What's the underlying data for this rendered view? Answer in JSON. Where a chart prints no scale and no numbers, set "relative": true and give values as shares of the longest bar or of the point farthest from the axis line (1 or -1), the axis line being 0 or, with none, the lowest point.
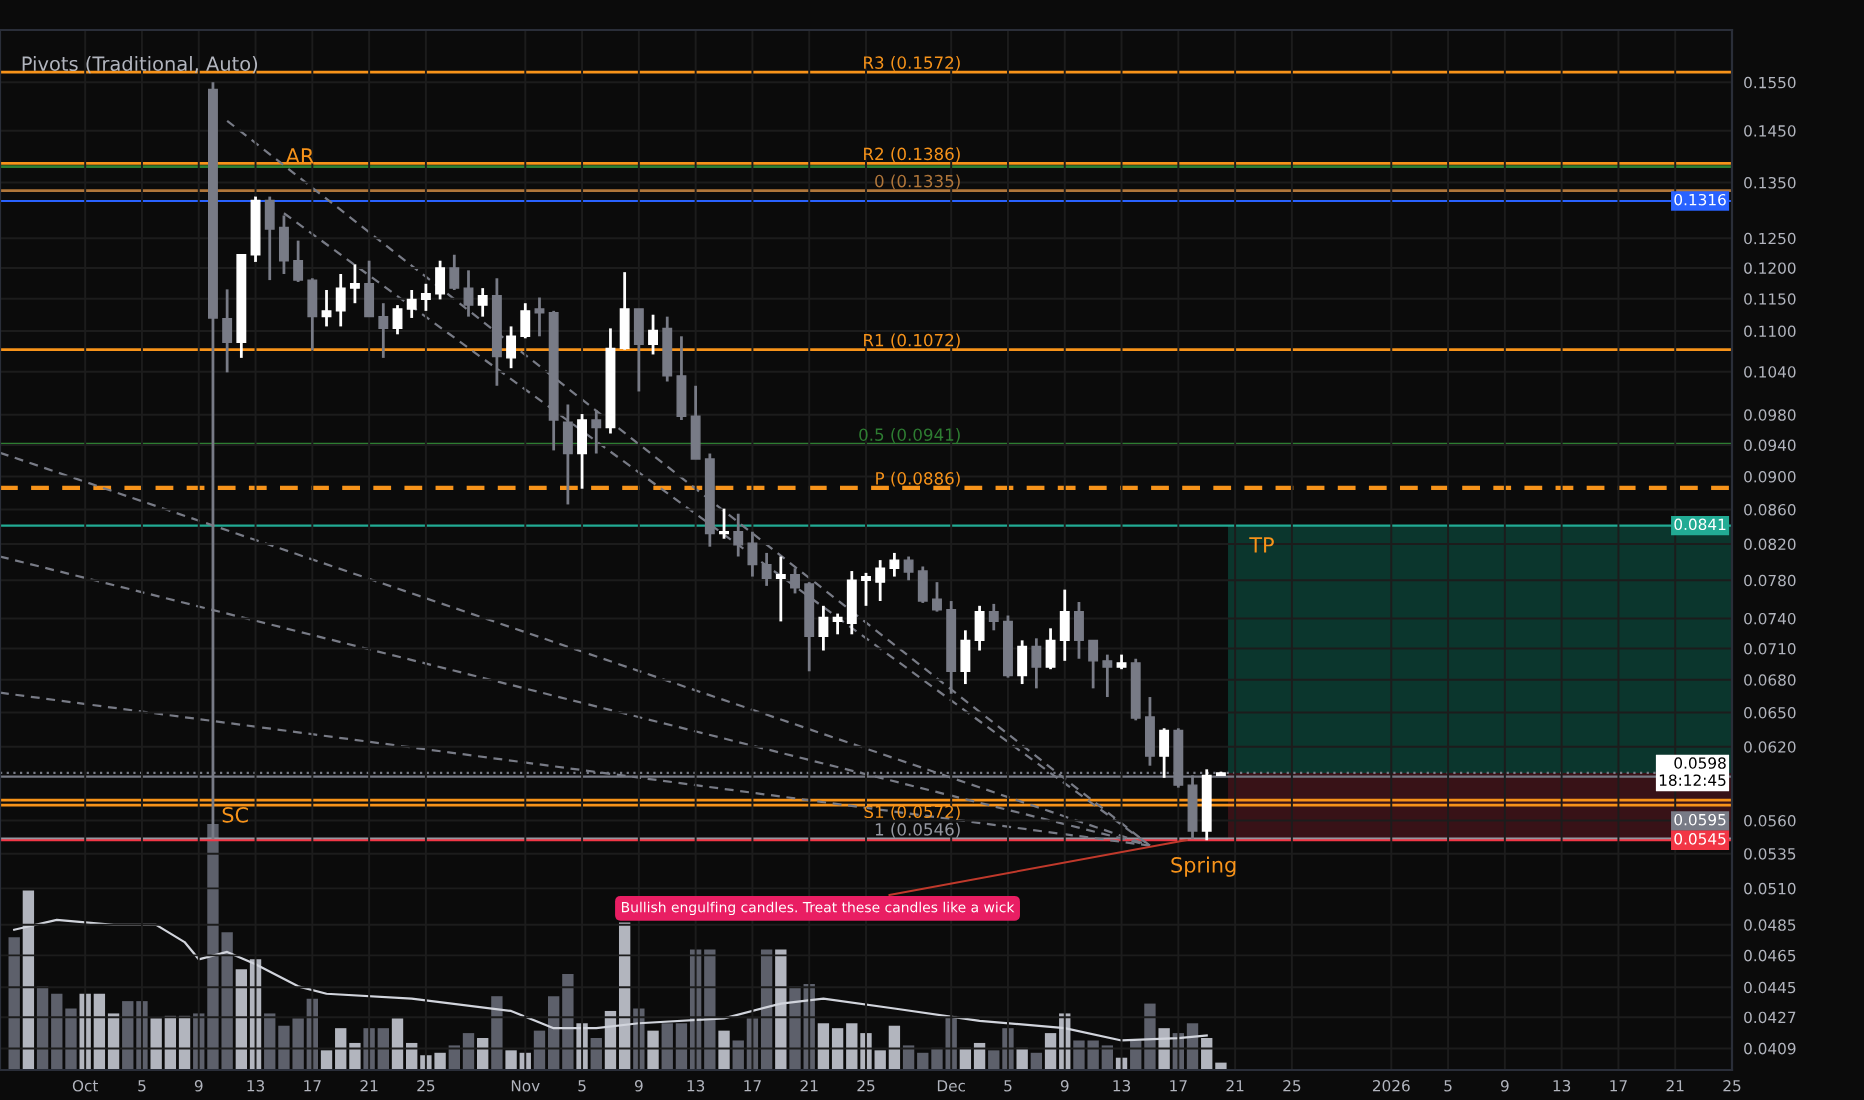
{
  "chart_data": [
    {
      "type": "candlestick",
      "x": [
        "2025-10-10",
        "2025-10-11",
        "2025-10-12",
        "2025-10-13",
        "2025-10-14",
        "2025-10-15",
        "2025-10-16",
        "2025-10-17",
        "2025-10-18",
        "2025-10-19",
        "2025-10-20",
        "2025-10-21",
        "2025-10-22",
        "2025-10-23",
        "2025-10-24",
        "2025-10-25",
        "2025-10-26",
        "2025-10-27",
        "2025-10-28",
        "2025-10-29",
        "2025-10-30",
        "2025-10-31",
        "2025-11-01",
        "2025-11-02",
        "2025-11-03",
        "2025-11-04",
        "2025-11-05",
        "2025-11-06",
        "2025-11-07",
        "2025-11-08",
        "2025-11-09",
        "2025-11-10",
        "2025-11-11",
        "2025-11-12",
        "2025-11-13",
        "2025-11-14",
        "2025-11-15",
        "2025-11-16",
        "2025-11-17",
        "2025-11-18",
        "2025-11-19",
        "2025-11-20",
        "2025-11-21",
        "2025-11-22",
        "2025-11-23",
        "2025-11-24",
        "2025-11-25",
        "2025-11-26",
        "2025-11-27",
        "2025-11-28",
        "2025-11-29",
        "2025-11-30",
        "2025-12-01",
        "2025-12-02",
        "2025-12-03",
        "2025-12-04",
        "2025-12-05",
        "2025-12-06",
        "2025-12-07",
        "2025-12-08",
        "2025-12-09",
        "2025-12-10",
        "2025-12-11",
        "2025-12-12",
        "2025-12-13",
        "2025-12-14",
        "2025-12-15",
        "2025-12-16",
        "2025-12-17",
        "2025-12-18",
        "2025-12-19",
        "2025-12-20"
      ],
      "ohlc": [
        [
          0.1535,
          0.155,
          0.0546,
          0.112
        ],
        [
          0.1119,
          0.1165,
          0.1039,
          0.1083
        ],
        [
          0.1083,
          0.1222,
          0.106,
          0.1222
        ],
        [
          0.1222,
          0.1324,
          0.121,
          0.1317
        ],
        [
          0.1317,
          0.1324,
          0.118,
          0.1266
        ],
        [
          0.1269,
          0.129,
          0.119,
          0.1212
        ],
        [
          0.1212,
          0.1246,
          0.1177,
          0.118
        ],
        [
          0.118,
          0.1183,
          0.1071,
          0.1122
        ],
        [
          0.1122,
          0.1164,
          0.1107,
          0.1131
        ],
        [
          0.1131,
          0.119,
          0.1107,
          0.1167
        ],
        [
          0.1167,
          0.1206,
          0.1143,
          0.1174
        ],
        [
          0.1174,
          0.1212,
          0.1122,
          0.1122
        ],
        [
          0.1122,
          0.1143,
          0.106,
          0.1104
        ],
        [
          0.1104,
          0.114,
          0.1095,
          0.1134
        ],
        [
          0.1134,
          0.1164,
          0.112,
          0.1149
        ],
        [
          0.1149,
          0.1174,
          0.1131,
          0.1158
        ],
        [
          0.1158,
          0.1212,
          0.1149,
          0.12
        ],
        [
          0.12,
          0.1222,
          0.1164,
          0.1167
        ],
        [
          0.1167,
          0.1196,
          0.1122,
          0.114
        ],
        [
          0.114,
          0.1167,
          0.1122,
          0.1155
        ],
        [
          0.1155,
          0.1183,
          0.102,
          0.1062
        ],
        [
          0.106,
          0.1107,
          0.1045,
          0.1092
        ],
        [
          0.1092,
          0.1143,
          0.1089,
          0.1131
        ],
        [
          0.1134,
          0.1152,
          0.1092,
          0.1128
        ],
        [
          0.1128,
          0.1131,
          0.0933,
          0.0973
        ],
        [
          0.097,
          0.0994,
          0.0866,
          0.0929
        ],
        [
          0.0929,
          0.0981,
          0.0885,
          0.0973
        ],
        [
          0.0973,
          0.0986,
          0.0929,
          0.0963
        ],
        [
          0.0963,
          0.1104,
          0.0955,
          0.1074
        ],
        [
          0.1074,
          0.1193,
          0.1072,
          0.1134
        ],
        [
          0.1134,
          0.1134,
          0.1012,
          0.108
        ],
        [
          0.108,
          0.1125,
          0.1065,
          0.1101
        ],
        [
          0.1104,
          0.1122,
          0.1026,
          0.1034
        ],
        [
          0.1034,
          0.1092,
          0.0973,
          0.0978
        ],
        [
          0.0978,
          0.102,
          0.0922,
          0.0922
        ],
        [
          0.0922,
          0.0929,
          0.0817,
          0.0832
        ],
        [
          0.0832,
          0.0861,
          0.0826,
          0.0834
        ],
        [
          0.0834,
          0.0855,
          0.0806,
          0.0819
        ],
        [
          0.0821,
          0.0834,
          0.0784,
          0.0797
        ],
        [
          0.0797,
          0.081,
          0.0774,
          0.0782
        ],
        [
          0.0782,
          0.0806,
          0.0737,
          0.0786
        ],
        [
          0.0786,
          0.0793,
          0.0766,
          0.0772
        ],
        [
          0.0776,
          0.0778,
          0.0688,
          0.0722
        ],
        [
          0.0722,
          0.0753,
          0.0708,
          0.0741
        ],
        [
          0.0737,
          0.0745,
          0.0724,
          0.0741
        ],
        [
          0.0735,
          0.079,
          0.0724,
          0.078
        ],
        [
          0.078,
          0.0788,
          0.0753,
          0.0784
        ],
        [
          0.0778,
          0.0802,
          0.0758,
          0.0793
        ],
        [
          0.0793,
          0.081,
          0.0784,
          0.0802
        ],
        [
          0.0802,
          0.0806,
          0.078,
          0.0789
        ],
        [
          0.079,
          0.0795,
          0.0756,
          0.0758
        ],
        [
          0.076,
          0.0778,
          0.0747,
          0.0749
        ],
        [
          0.0749,
          0.0758,
          0.0667,
          0.0688
        ],
        [
          0.0688,
          0.0728,
          0.0676,
          0.0718
        ],
        [
          0.0718,
          0.0753,
          0.0708,
          0.0747
        ],
        [
          0.0747,
          0.0755,
          0.0728,
          0.0737
        ],
        [
          0.0737,
          0.0743,
          0.0682,
          0.0684
        ],
        [
          0.0684,
          0.0718,
          0.0676,
          0.0712
        ],
        [
          0.0712,
          0.072,
          0.0672,
          0.0692
        ],
        [
          0.0692,
          0.073,
          0.069,
          0.0718
        ],
        [
          0.0718,
          0.077,
          0.0698,
          0.0747
        ],
        [
          0.0747,
          0.0757,
          0.07,
          0.0718
        ],
        [
          0.0718,
          0.0718,
          0.0672,
          0.0698
        ],
        [
          0.0698,
          0.0704,
          0.0664,
          0.0692
        ],
        [
          0.0692,
          0.0704,
          0.069,
          0.0696
        ],
        [
          0.0696,
          0.07,
          0.0643,
          0.0645
        ],
        [
          0.0646,
          0.0664,
          0.0604,
          0.0612
        ],
        [
          0.0612,
          0.0636,
          0.0594,
          0.0634
        ],
        [
          0.0634,
          0.0636,
          0.0586,
          0.0588
        ],
        [
          0.0588,
          0.0596,
          0.0546,
          0.0552
        ],
        [
          0.0552,
          0.0601,
          0.0545,
          0.0596
        ],
        [
          0.0596,
          0.0599,
          0.0596,
          0.0598
        ]
      ],
      "colors": [
        "#787b86",
        "#787b86",
        "#ffffff",
        "#ffffff",
        "#787b86",
        "#787b86",
        "#787b86",
        "#787b86",
        "#ffffff",
        "#ffffff",
        "#ffffff",
        "#787b86",
        "#787b86",
        "#ffffff",
        "#ffffff",
        "#ffffff",
        "#ffffff",
        "#787b86",
        "#787b86",
        "#ffffff",
        "#787b86",
        "#ffffff",
        "#ffffff",
        "#787b86",
        "#787b86",
        "#787b86",
        "#ffffff",
        "#787b86",
        "#ffffff",
        "#ffffff",
        "#787b86",
        "#ffffff",
        "#787b86",
        "#787b86",
        "#787b86",
        "#787b86",
        "#ffffff",
        "#787b86",
        "#787b86",
        "#787b86",
        "#ffffff",
        "#787b86",
        "#787b86",
        "#ffffff",
        "#ffffff",
        "#ffffff",
        "#ffffff",
        "#ffffff",
        "#ffffff",
        "#787b86",
        "#787b86",
        "#787b86",
        "#787b86",
        "#ffffff",
        "#ffffff",
        "#787b86",
        "#787b86",
        "#ffffff",
        "#787b86",
        "#ffffff",
        "#ffffff",
        "#787b86",
        "#787b86",
        "#787b86",
        "#ffffff",
        "#787b86",
        "#787b86",
        "#ffffff",
        "#787b86",
        "#787b86",
        "#ffffff",
        "#ffffff"
      ],
      "series": [
        {
          "type": "line",
          "color": "#787b86",
          "x": [
            "2025-10-11",
            "2025-12-15"
          ],
          "values": [
            0.147,
            0.0541
          ]
        },
        {
          "type": "line",
          "color": "#787b86",
          "x": [
            "2025-10-15",
            "2025-12-15"
          ],
          "values": [
            0.1294,
            0.0541
          ]
        },
        {
          "type": "line",
          "color": "#787b86",
          "x": [
            "2025-09-25",
            "2025-12-15"
          ],
          "values": [
            0.093,
            0.0541
          ]
        },
        {
          "type": "line",
          "color": "#787b86",
          "x": [
            "2025-09-25",
            "2025-12-15"
          ],
          "values": [
            0.0806,
            0.0541
          ]
        },
        {
          "type": "line",
          "color": "#787b86",
          "x": [
            "2025-09-25",
            "2025-12-15"
          ],
          "values": [
            0.0668,
            0.0541
          ]
        }
      ],
      "line_style": "dashed",
      "log": true,
      "grid": true,
      "xlim": [
        "2025-09-25",
        "2026-01-25"
      ],
      "xticks": [
        {
          "value": "2025-10-01",
          "label": "Oct"
        },
        {
          "value": "2025-10-05",
          "label": "5"
        },
        {
          "value": "2025-10-09",
          "label": "9"
        },
        {
          "value": "2025-10-13",
          "label": "13"
        },
        {
          "value": "2025-10-17",
          "label": "17"
        },
        {
          "value": "2025-10-21",
          "label": "21"
        },
        {
          "value": "2025-10-25",
          "label": "25"
        },
        {
          "value": "2025-11-01",
          "label": "Nov"
        },
        {
          "value": "2025-11-05",
          "label": "5"
        },
        {
          "value": "2025-11-09",
          "label": "9"
        },
        {
          "value": "2025-11-13",
          "label": "13"
        },
        {
          "value": "2025-11-17",
          "label": "17"
        },
        {
          "value": "2025-11-21",
          "label": "21"
        },
        {
          "value": "2025-11-25",
          "label": "25"
        },
        {
          "value": "2025-12-01",
          "label": "Dec"
        },
        {
          "value": "2025-12-05",
          "label": "5"
        },
        {
          "value": "2025-12-09",
          "label": "9"
        },
        {
          "value": "2025-12-13",
          "label": "13"
        },
        {
          "value": "2025-12-17",
          "label": "17"
        },
        {
          "value": "2025-12-21",
          "label": "21"
        },
        {
          "value": "2025-12-25",
          "label": "25"
        },
        {
          "value": "2026-01-01",
          "label": "2026"
        },
        {
          "value": "2026-01-05",
          "label": "5"
        },
        {
          "value": "2026-01-09",
          "label": "9"
        },
        {
          "value": "2026-01-13",
          "label": "13"
        },
        {
          "value": "2026-01-17",
          "label": "17"
        },
        {
          "value": "2026-01-21",
          "label": "21"
        },
        {
          "value": "2026-01-25",
          "label": "25"
        }
      ],
      "ylim": [
        0.0397,
        0.1666
      ],
      "yticks": [
        {
          "value": 0.155,
          "label": "0.1550"
        },
        {
          "value": 0.145,
          "label": "0.1450"
        },
        {
          "value": 0.135,
          "label": "0.1350"
        },
        {
          "value": 0.125,
          "label": "0.1250"
        },
        {
          "value": 0.12,
          "label": "0.1200"
        },
        {
          "value": 0.115,
          "label": "0.1150"
        },
        {
          "value": 0.11,
          "label": "0.1100"
        },
        {
          "value": 0.104,
          "label": "0.1040"
        },
        {
          "value": 0.098,
          "label": "0.0980"
        },
        {
          "value": 0.094,
          "label": "0.0940"
        },
        {
          "value": 0.09,
          "label": "0.0900"
        },
        {
          "value": 0.086,
          "label": "0.0860"
        },
        {
          "value": 0.082,
          "label": "0.0820"
        },
        {
          "value": 0.078,
          "label": "0.0780"
        },
        {
          "value": 0.074,
          "label": "0.0740"
        },
        {
          "value": 0.071,
          "label": "0.0710"
        },
        {
          "value": 0.068,
          "label": "0.0680"
        },
        {
          "value": 0.065,
          "label": "0.0650"
        },
        {
          "value": 0.062,
          "label": "0.0620"
        },
        {
          "value": 0.056,
          "label": "0.0560"
        },
        {
          "value": 0.0535,
          "label": "0.0535"
        },
        {
          "value": 0.051,
          "label": "0.0510"
        },
        {
          "value": 0.0485,
          "label": "0.0485"
        },
        {
          "value": 0.0465,
          "label": "0.0465"
        },
        {
          "value": 0.0445,
          "label": "0.0445"
        },
        {
          "value": 0.0427,
          "label": "0.0427"
        },
        {
          "value": 0.0409,
          "label": "0.0409"
        }
      ],
      "ref_lines": [
        {
          "axis": "y",
          "value": 0.1572,
          "label": "R3 (0.1572)",
          "color": "#f7931a",
          "line_style": "solid"
        },
        {
          "axis": "y",
          "value": 0.1386,
          "label": "R2 (0.1386)",
          "color": "#f7931a",
          "line_style": "solid"
        },
        {
          "axis": "y",
          "value": 0.138,
          "color": "#2e7d32",
          "line_style": "solid"
        },
        {
          "axis": "y",
          "value": 0.1335,
          "label": "0 (0.1335)",
          "color": "#b0763a",
          "line_style": "solid"
        },
        {
          "axis": "y",
          "value": 0.1316,
          "label": "0.1316",
          "color": "#2962ff"
        },
        {
          "axis": "y",
          "value": 0.1072,
          "label": "R1 (0.1072)",
          "color": "#f7931a",
          "line_style": "solid"
        },
        {
          "axis": "y",
          "value": 0.0941,
          "label": "0.5 (0.0941)",
          "color": "#2e7d32",
          "line_style": "solid"
        },
        {
          "axis": "y",
          "value": 0.0841,
          "label": "0.0841",
          "color": "#22ab94"
        },
        {
          "axis": "y",
          "value": 0.0886,
          "label": "P (0.0886)",
          "color": "#f7931a",
          "line_style": "dashed"
        },
        {
          "axis": "y",
          "value": 0.0598,
          "label": "0.0598\n18:12:45",
          "color": "#787b86",
          "line_style": "dotted"
        },
        {
          "axis": "y",
          "value": 0.0595,
          "label": "0.0595",
          "color": "#787b86"
        },
        {
          "axis": "y",
          "value": 0.0576,
          "color": "#f7931a",
          "line_style": "solid"
        },
        {
          "axis": "y",
          "value": 0.0572,
          "label": "S1 (0.0572)",
          "color": "#f7931a",
          "line_style": "solid"
        },
        {
          "axis": "y",
          "value": 0.0546,
          "label": "1 (0.0546)",
          "color": "#9598a1",
          "line_style": "solid"
        },
        {
          "axis": "y",
          "value": 0.0545,
          "label": "0.0545",
          "color": "#f23645"
        }
      ],
      "bands": [
        {
          "axis": "y",
          "from": 0.0598,
          "to": 0.0841,
          "label": "TP",
          "color": "#0b3b31"
        },
        {
          "axis": "y",
          "from": 0.0545,
          "to": 0.0598,
          "color": "#3d1318"
        }
      ],
      "annotations": [
        "Pivots (Traditional, Auto)",
        {
          "text": "AR",
          "x": "2025-10-13",
          "y": 0.1324
        },
        {
          "text": "SC",
          "x": "2025-10-10",
          "y": 0.0546
        },
        {
          "text": "Spring",
          "x": "2025-12-18",
          "y": 0.0546
        },
        {
          "text": "Bullish engulfing candles. Treat these candles like a wick",
          "x": "2025-12-18",
          "y": 0.0546
        }
      ]
    },
    {
      "type": "bar",
      "relative": true,
      "tick_labels": false,
      "xlim": [
        "2025-09-25",
        "2026-01-25"
      ],
      "x": [
        "2025-09-26",
        "2025-09-27",
        "2025-09-28",
        "2025-09-29",
        "2025-09-30",
        "2025-10-01",
        "2025-10-02",
        "2025-10-03",
        "2025-10-04",
        "2025-10-05",
        "2025-10-06",
        "2025-10-07",
        "2025-10-08",
        "2025-10-09",
        "2025-10-10",
        "2025-10-11",
        "2025-10-12",
        "2025-10-13",
        "2025-10-14",
        "2025-10-15",
        "2025-10-16",
        "2025-10-17",
        "2025-10-18",
        "2025-10-19",
        "2025-10-20",
        "2025-10-21",
        "2025-10-22",
        "2025-10-23",
        "2025-10-24",
        "2025-10-25",
        "2025-10-26",
        "2025-10-27",
        "2025-10-28",
        "2025-10-29",
        "2025-10-30",
        "2025-10-31",
        "2025-11-01",
        "2025-11-02",
        "2025-11-03",
        "2025-11-04",
        "2025-11-05",
        "2025-11-06",
        "2025-11-07",
        "2025-11-08",
        "2025-11-09",
        "2025-11-10",
        "2025-11-11",
        "2025-11-12",
        "2025-11-13",
        "2025-11-14",
        "2025-11-15",
        "2025-11-16",
        "2025-11-17",
        "2025-11-18",
        "2025-11-19",
        "2025-11-20",
        "2025-11-21",
        "2025-11-22",
        "2025-11-23",
        "2025-11-24",
        "2025-11-25",
        "2025-11-26",
        "2025-11-27",
        "2025-11-28",
        "2025-11-29",
        "2025-11-30",
        "2025-12-01",
        "2025-12-02",
        "2025-12-03",
        "2025-12-04",
        "2025-12-05",
        "2025-12-06",
        "2025-12-07",
        "2025-12-08",
        "2025-12-09",
        "2025-12-10",
        "2025-12-11",
        "2025-12-12",
        "2025-12-13",
        "2025-12-14",
        "2025-12-15",
        "2025-12-16",
        "2025-12-17",
        "2025-12-18",
        "2025-12-19",
        "2025-12-20"
      ],
      "series": [
        {
          "type": "bar",
          "values": [
            0.54,
            0.73,
            0.34,
            0.31,
            0.25,
            0.31,
            0.31,
            0.23,
            0.28,
            0.28,
            0.21,
            0.22,
            0.22,
            0.23,
            1,
            0.56,
            0.41,
            0.45,
            0.23,
            0.18,
            0.21,
            0.29,
            0.08,
            0.17,
            0.11,
            0.17,
            0.17,
            0.21,
            0.11,
            0.06,
            0.07,
            0.1,
            0.15,
            0.13,
            0.3,
            0.08,
            0.07,
            0.16,
            0.3,
            0.39,
            0.19,
            0.13,
            0.24,
            0.6,
            0.25,
            0.16,
            0.19,
            0.19,
            0.49,
            0.49,
            0.16,
            0.12,
            0.21,
            0.49,
            0.49,
            0.34,
            0.35,
            0.19,
            0.17,
            0.19,
            0.15,
            0.08,
            0.18,
            0.1,
            0.07,
            0.09,
            0.22,
            0.09,
            0.11,
            0.08,
            0.17,
            0.09,
            0.07,
            0.15,
            0.23,
            0.12,
            0.12,
            0.1,
            0.05,
            0.12,
            0.27,
            0.17,
            0.15,
            0.19,
            0.13,
            0.03
          ],
          "colors": [
            "#5d606b",
            "#b2b5be",
            "#5d606b",
            "#5d606b",
            "#5d606b",
            "#b2b5be",
            "#b2b5be",
            "#b2b5be",
            "#5d606b",
            "#5d606b",
            "#b2b5be",
            "#b2b5be",
            "#b2b5be",
            "#5d606b",
            "#5d606b",
            "#5d606b",
            "#b2b5be",
            "#b2b5be",
            "#5d606b",
            "#5d606b",
            "#5d606b",
            "#5d606b",
            "#b2b5be",
            "#b2b5be",
            "#b2b5be",
            "#5d606b",
            "#5d606b",
            "#b2b5be",
            "#b2b5be",
            "#b2b5be",
            "#b2b5be",
            "#5d606b",
            "#5d606b",
            "#b2b5be",
            "#5d606b",
            "#b2b5be",
            "#b2b5be",
            "#5d606b",
            "#5d606b",
            "#5d606b",
            "#b2b5be",
            "#5d606b",
            "#b2b5be",
            "#b2b5be",
            "#5d606b",
            "#b2b5be",
            "#5d606b",
            "#5d606b",
            "#5d606b",
            "#5d606b",
            "#b2b5be",
            "#5d606b",
            "#5d606b",
            "#5d606b",
            "#b2b5be",
            "#5d606b",
            "#5d606b",
            "#b2b5be",
            "#b2b5be",
            "#b2b5be",
            "#b2b5be",
            "#b2b5be",
            "#b2b5be",
            "#5d606b",
            "#5d606b",
            "#5d606b",
            "#5d606b",
            "#b2b5be",
            "#b2b5be",
            "#5d606b",
            "#5d606b",
            "#b2b5be",
            "#5d606b",
            "#b2b5be",
            "#b2b5be",
            "#5d606b",
            "#5d606b",
            "#5d606b",
            "#b2b5be",
            "#5d606b",
            "#5d606b",
            "#b2b5be",
            "#5d606b",
            "#5d606b",
            "#b2b5be",
            "#b2b5be"
          ]
        },
        {
          "type": "line",
          "color": "#d1d4dc",
          "x": [
            "2025-09-26",
            "2025-09-29",
            "2025-10-03",
            "2025-10-06",
            "2025-10-08",
            "2025-10-09",
            "2025-10-11",
            "2025-10-13",
            "2025-10-16",
            "2025-10-18",
            "2025-10-24",
            "2025-10-31",
            "2025-11-03",
            "2025-11-06",
            "2025-11-09",
            "2025-11-15",
            "2025-11-19",
            "2025-11-22",
            "2025-11-27",
            "2025-12-03",
            "2025-12-09",
            "2025-12-13",
            "2025-12-17",
            "2025-12-19"
          ],
          "values": [
            0.57,
            0.61,
            0.59,
            0.59,
            0.52,
            0.45,
            0.48,
            0.43,
            0.34,
            0.31,
            0.29,
            0.24,
            0.17,
            0.17,
            0.19,
            0.21,
            0.27,
            0.29,
            0.25,
            0.2,
            0.17,
            0.12,
            0.13,
            0.14
          ]
        }
      ]
    }
  ]
}
